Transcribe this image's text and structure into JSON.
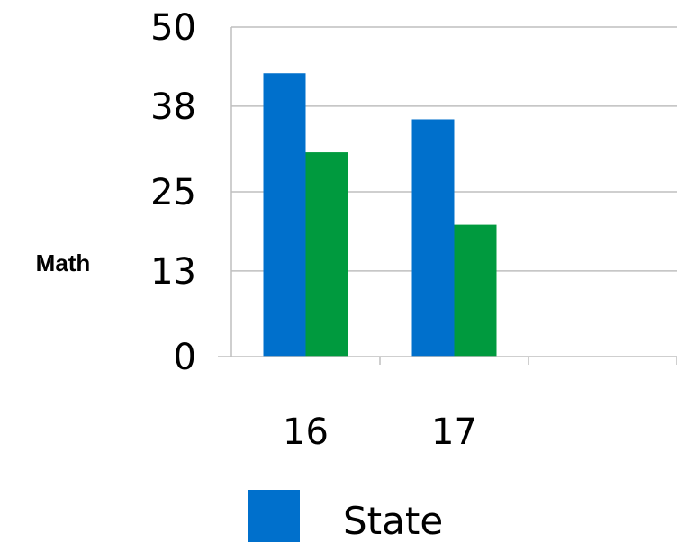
{
  "chart_data": {
    "type": "bar",
    "ylabel": "Math",
    "xlabel": "",
    "categories": [
      "16",
      "17"
    ],
    "category_slots": 3,
    "ylim": [
      0,
      50
    ],
    "yticks": [
      0,
      13,
      25,
      38,
      50
    ],
    "ytick_labels": [
      "0",
      "13",
      "25",
      "38",
      "50"
    ],
    "grid": true,
    "series": [
      {
        "name": "State",
        "color": "#0070cc",
        "values": [
          43,
          36
        ]
      },
      {
        "color": "#009a3e",
        "values": [
          31,
          20
        ]
      }
    ],
    "legend": {
      "position": "bottom",
      "entries": [
        "State"
      ]
    }
  }
}
